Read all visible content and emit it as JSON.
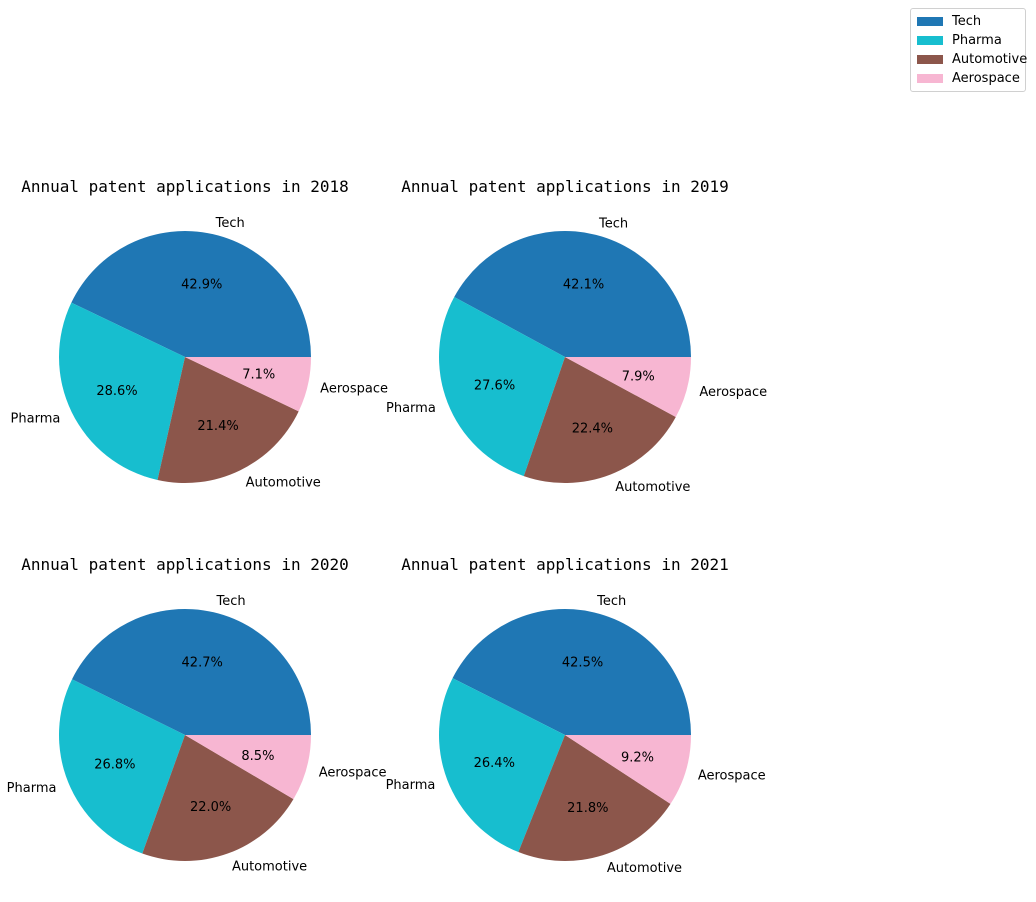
{
  "legend": {
    "items": [
      {
        "label": "Tech",
        "color": "#1f77b4"
      },
      {
        "label": "Pharma",
        "color": "#17becf"
      },
      {
        "label": "Automotive",
        "color": "#8c564b"
      },
      {
        "label": "Aerospace",
        "color": "#f7b6d2"
      }
    ]
  },
  "chart_data": [
    {
      "type": "pie",
      "title": "Annual patent applications in 2018",
      "categories": [
        "Tech",
        "Pharma",
        "Automotive",
        "Aerospace"
      ],
      "values": [
        42.9,
        28.6,
        21.4,
        7.1
      ],
      "value_labels": [
        "42.9%",
        "28.6%",
        "21.4%",
        "7.1%"
      ],
      "colors": [
        "#1f77b4",
        "#17becf",
        "#8c564b",
        "#f7b6d2"
      ],
      "start_angle": "0°, counter-clockwise"
    },
    {
      "type": "pie",
      "title": "Annual patent applications in 2019",
      "categories": [
        "Tech",
        "Pharma",
        "Automotive",
        "Aerospace"
      ],
      "values": [
        42.1,
        27.6,
        22.4,
        7.9
      ],
      "value_labels": [
        "42.1%",
        "27.6%",
        "22.4%",
        "7.9%"
      ],
      "colors": [
        "#1f77b4",
        "#17becf",
        "#8c564b",
        "#f7b6d2"
      ],
      "start_angle": "0°, counter-clockwise"
    },
    {
      "type": "pie",
      "title": "Annual patent applications in 2020",
      "categories": [
        "Tech",
        "Pharma",
        "Automotive",
        "Aerospace"
      ],
      "values": [
        42.7,
        26.8,
        22.0,
        8.5
      ],
      "value_labels": [
        "42.7%",
        "26.8%",
        "22.0%",
        "8.5%"
      ],
      "colors": [
        "#1f77b4",
        "#17becf",
        "#8c564b",
        "#f7b6d2"
      ],
      "start_angle": "0°, counter-clockwise"
    },
    {
      "type": "pie",
      "title": "Annual patent applications in 2021",
      "categories": [
        "Tech",
        "Pharma",
        "Automotive",
        "Aerospace"
      ],
      "values": [
        42.5,
        26.4,
        21.8,
        9.2
      ],
      "value_labels": [
        "42.5%",
        "26.4%",
        "21.8%",
        "9.2%"
      ],
      "colors": [
        "#1f77b4",
        "#17becf",
        "#8c564b",
        "#f7b6d2"
      ],
      "start_angle": "0°, counter-clockwise"
    }
  ]
}
